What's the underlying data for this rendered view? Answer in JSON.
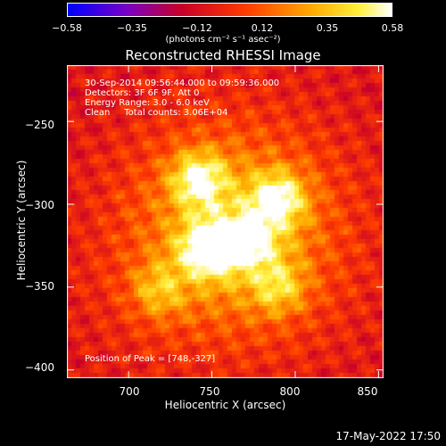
{
  "colorbar": {
    "ticks": [
      "−0.58",
      "−0.35",
      "−0.12",
      "0.12",
      "0.35",
      "0.58"
    ],
    "units": "(photons cm⁻² s⁻¹ asec⁻²)"
  },
  "title": "Reconstructed RHESSI Image",
  "info": {
    "time_range": "30-Sep-2014 09:56:44.000 to 09:59:36.000",
    "detectors": "Detectors: 3F 6F 9F, Att 0",
    "energy": "Energy Range: 3.0 - 6.0 keV",
    "clean": "Clean     Total counts: 3.06E+04",
    "peak": "Position of Peak = [748,-327]"
  },
  "axes": {
    "xlabel": "Heliocentric X (arcsec)",
    "ylabel": "Heliocentric Y (arcsec)",
    "xticks": [
      "700",
      "750",
      "800",
      "850"
    ],
    "yticks": [
      "−250",
      "−300",
      "−350",
      "−400"
    ]
  },
  "timestamp": "17-May-2022 17:50",
  "chart_data": {
    "type": "heatmap",
    "title": "Reconstructed RHESSI Image",
    "xlabel": "Heliocentric X (arcsec)",
    "ylabel": "Heliocentric Y (arcsec)",
    "xlim": [
      663,
      853
    ],
    "ylim": [
      -405,
      -216
    ],
    "xticks": [
      700,
      750,
      800,
      850
    ],
    "yticks": [
      -250,
      -300,
      -350,
      -400
    ],
    "colorbar_range": [
      -0.58,
      0.58
    ],
    "peak": [
      748,
      -327
    ],
    "sources": [
      {
        "x": 748,
        "y": -327,
        "intensity": 1.0
      },
      {
        "x": 742,
        "y": -285,
        "intensity": 0.85
      },
      {
        "x": 790,
        "y": -297,
        "intensity": 0.85
      },
      {
        "x": 772,
        "y": -322,
        "intensity": 0.7
      },
      {
        "x": 790,
        "y": -350,
        "intensity": 0.55
      },
      {
        "x": 718,
        "y": -352,
        "intensity": 0.5
      }
    ]
  }
}
